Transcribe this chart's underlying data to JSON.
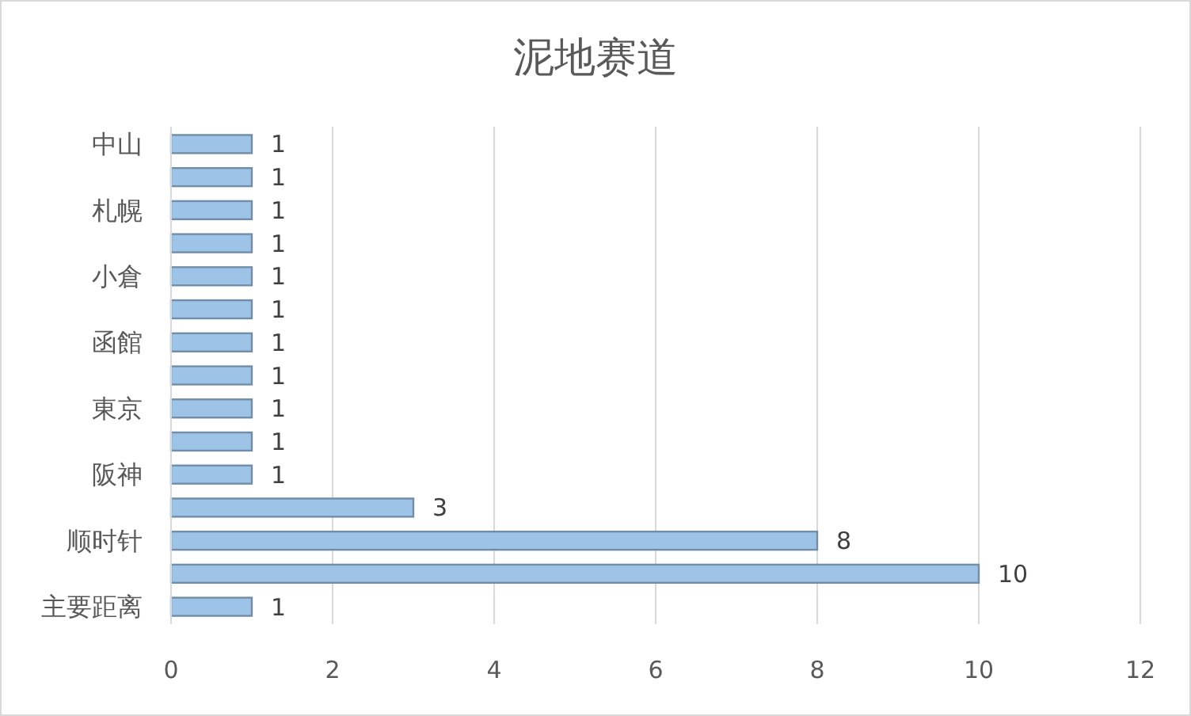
{
  "chart_data": {
    "type": "bar",
    "orientation": "horizontal",
    "title": "泥地赛道",
    "categories": [
      "中山",
      null,
      "札幌",
      null,
      "小倉",
      null,
      "函館",
      null,
      "東京",
      null,
      "阪神",
      null,
      "顺时针",
      null,
      "主要距离"
    ],
    "values": [
      1,
      1,
      1,
      1,
      1,
      1,
      1,
      1,
      1,
      1,
      1,
      3,
      8,
      10,
      1
    ],
    "color": "#9dc3e6",
    "xlim": [
      0,
      12
    ],
    "xticks": [
      0,
      2,
      4,
      6,
      8,
      10,
      12
    ],
    "grid": "x",
    "data_labels": true
  }
}
